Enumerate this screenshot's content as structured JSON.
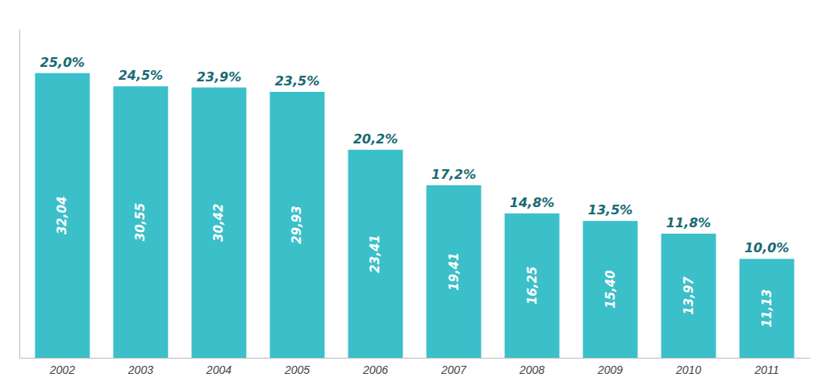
{
  "chart_data": {
    "type": "bar",
    "categories": [
      "2002",
      "2003",
      "2004",
      "2005",
      "2006",
      "2007",
      "2008",
      "2009",
      "2010",
      "2011"
    ],
    "values": [
      32.04,
      30.55,
      30.42,
      29.93,
      23.41,
      19.41,
      16.25,
      15.4,
      13.97,
      11.13
    ],
    "value_labels": [
      "32,04",
      "30,55",
      "30,42",
      "29,93",
      "23,41",
      "19,41",
      "16,25",
      "15,40",
      "13,97",
      "11,13"
    ],
    "percentages": [
      25.0,
      24.5,
      23.9,
      23.5,
      20.2,
      17.2,
      14.8,
      13.5,
      11.8,
      10.0
    ],
    "percentage_labels": [
      "25,0%",
      "24,5%",
      "23,9%",
      "23,5%",
      "20,2%",
      "17,2%",
      "14,8%",
      "13,5%",
      "11,8%",
      "10,0%"
    ],
    "color": "#3bbfc9",
    "ylim": [
      0,
      37
    ],
    "data_labels": true,
    "tick_labels": "x",
    "grid": false
  }
}
